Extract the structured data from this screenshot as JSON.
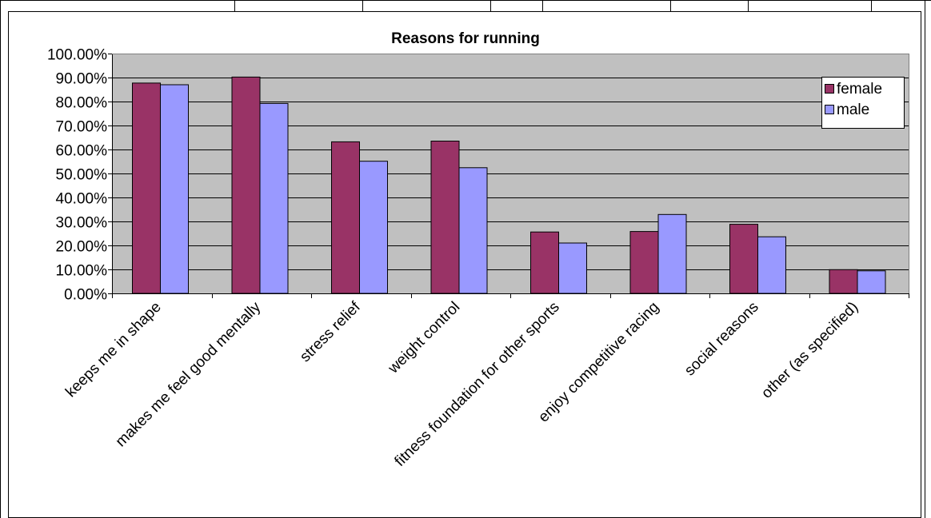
{
  "chart_data": {
    "type": "bar",
    "title": "Reasons for running",
    "xlabel": "",
    "ylabel": "",
    "ylim": [
      0,
      1
    ],
    "y_ticks": [
      0,
      0.1,
      0.2,
      0.3,
      0.4,
      0.5,
      0.6,
      0.7,
      0.8,
      0.9,
      1.0
    ],
    "y_tick_labels": [
      "0.00%",
      "10.00%",
      "20.00%",
      "30.00%",
      "40.00%",
      "50.00%",
      "60.00%",
      "70.00%",
      "80.00%",
      "90.00%",
      "100.00%"
    ],
    "categories": [
      "keeps me in shape",
      "makes me feel good mentally",
      "stress relief",
      "weight control",
      "fitness foundation for other sports",
      "enjoy competitive racing",
      "social reasons",
      "other (as specified)"
    ],
    "series": [
      {
        "name": "female",
        "color": "#993366",
        "values": [
          0.877,
          0.902,
          0.632,
          0.635,
          0.256,
          0.258,
          0.288,
          0.099
        ]
      },
      {
        "name": "male",
        "color": "#9999ff",
        "values": [
          0.87,
          0.792,
          0.551,
          0.524,
          0.21,
          0.329,
          0.236,
          0.094
        ]
      }
    ],
    "grid": true,
    "plot_background": "#c0c0c0",
    "legend_position": "top-right"
  }
}
